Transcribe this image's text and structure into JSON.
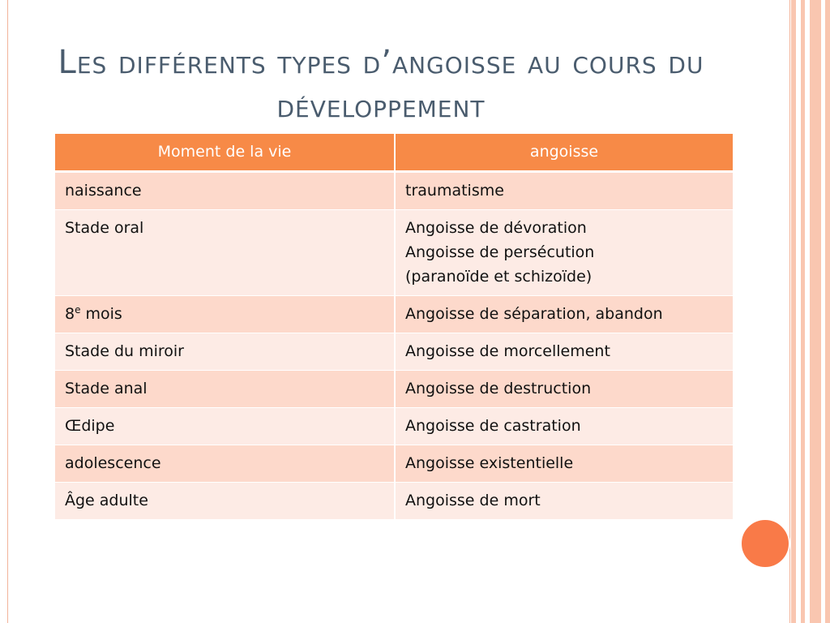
{
  "slide": {
    "title": "Les différents types d’angoisse au cours du développement",
    "colors": {
      "accent": "#f78a47",
      "row_odd": "#fdd9cb",
      "row_even": "#fdebe5",
      "title_text": "#4a5c6e",
      "stripe": "#f9c6b0",
      "circle": "#f97a48"
    }
  },
  "table": {
    "headers": [
      "Moment de la vie",
      "angoisse"
    ],
    "rows": [
      {
        "moment": "naissance",
        "angoisse": [
          "traumatisme"
        ]
      },
      {
        "moment": "Stade oral",
        "angoisse": [
          "Angoisse de dévoration",
          "Angoisse de persécution",
          "(paranoïde et schizoïde)"
        ]
      },
      {
        "moment": "8",
        "moment_sup": "e",
        "moment_suffix": " mois",
        "angoisse": [
          "Angoisse de séparation, abandon"
        ]
      },
      {
        "moment": "Stade du miroir",
        "angoisse": [
          "Angoisse de morcellement"
        ]
      },
      {
        "moment": "Stade anal",
        "angoisse": [
          "Angoisse de destruction"
        ]
      },
      {
        "moment": "Œdipe",
        "angoisse": [
          "Angoisse de castration"
        ]
      },
      {
        "moment": "adolescence",
        "angoisse": [
          "Angoisse existentielle"
        ]
      },
      {
        "moment": "Âge adulte",
        "angoisse": [
          "Angoisse de mort"
        ]
      }
    ]
  }
}
